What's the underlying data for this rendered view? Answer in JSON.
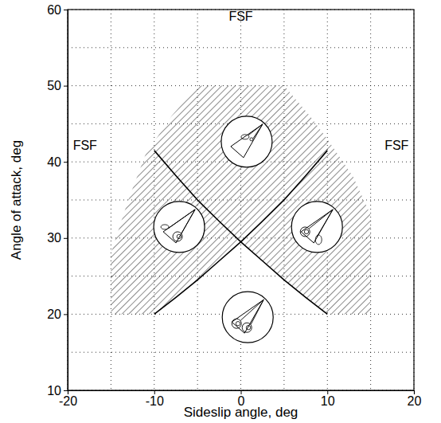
{
  "chart_data": {
    "type": "line",
    "x_label": "Sideslip angle, deg",
    "y_label": "Angle of attack, deg",
    "xlim": [
      -20,
      20
    ],
    "xticks": [
      -20,
      -10,
      0,
      10,
      20
    ],
    "ylim": [
      10,
      60
    ],
    "yticks": [
      10,
      20,
      30,
      40,
      50,
      60
    ],
    "x_minor_ticks": [
      -15,
      -5,
      5,
      15
    ],
    "y_minor_ticks": [
      15,
      25,
      35,
      45,
      55
    ],
    "grid": true,
    "series": [
      {
        "x": [
          -10,
          -7.5,
          -5,
          -2.5,
          0,
          2.5,
          5,
          7.5,
          10
        ],
        "values": [
          41.5,
          38.2,
          35,
          32.2,
          29.5,
          27,
          24.5,
          22.2,
          20
        ],
        "color": "#000000"
      },
      {
        "x": [
          -10,
          -7.5,
          -5,
          -2.5,
          0,
          2.5,
          5,
          7.5,
          10
        ],
        "values": [
          20,
          22.2,
          24.5,
          27,
          29.5,
          32.2,
          35,
          38.2,
          41.5
        ],
        "color": "#000000"
      }
    ],
    "region": {
      "x": [
        -15,
        -10,
        -7.5,
        -5,
        -2.5,
        0,
        2.5,
        5,
        7.5,
        10,
        15,
        15,
        13,
        10,
        8,
        5,
        -5,
        -8,
        -11,
        -13,
        -15
      ],
      "y": [
        20,
        20,
        22.2,
        24.5,
        27,
        29.5,
        27,
        24.5,
        22.2,
        20,
        20,
        33,
        38,
        43,
        46,
        50,
        50,
        46,
        41,
        35,
        28
      ],
      "color": "#000000"
    },
    "annotations": [
      {
        "text": "FSF",
        "x": 0,
        "y": 59
      },
      {
        "text": "FSF",
        "x": -18,
        "y": 42
      },
      {
        "text": "FSF",
        "x": 18,
        "y": 42
      }
    ]
  }
}
